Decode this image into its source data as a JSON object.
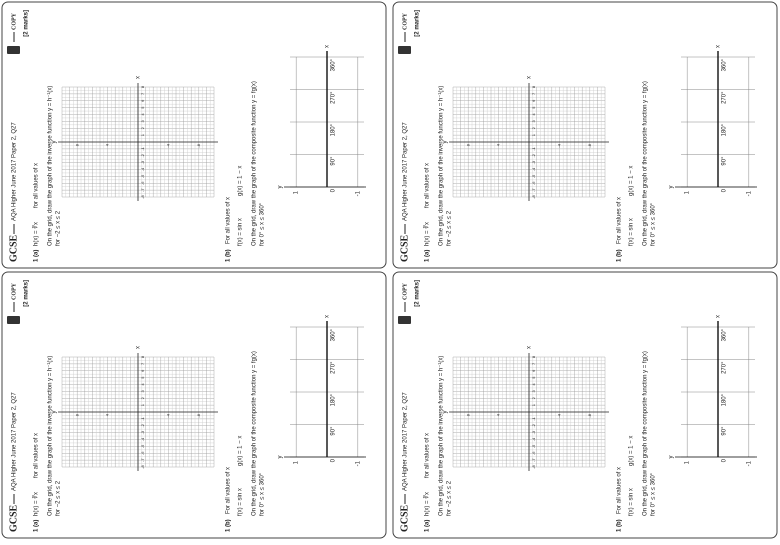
{
  "header": {
    "brand": "GCSE",
    "source": "AQA Higher June 2017 Paper 2, Q27",
    "copy": "COPY",
    "marks": "[2 marks]"
  },
  "part_a": {
    "label": "1 (a)",
    "function": "h(x) = ∛x",
    "domain_note": "for all values of x",
    "instruction": "On the grid, draw the graph of the inverse function y = h⁻¹(x)",
    "range": "for −2 ≤ x ≤ 2",
    "x_label": "x",
    "y_label": "y",
    "xlim": [
      -8,
      8
    ],
    "ylim": [
      -10,
      10
    ],
    "xticks": [
      -8,
      -7,
      -6,
      -5,
      -4,
      -3,
      -2,
      -1,
      1,
      2,
      3,
      4,
      5,
      6,
      7,
      8
    ],
    "yticks": [
      -8,
      -4,
      4,
      8
    ]
  },
  "part_b": {
    "label": "1 (b)",
    "intro": "For all values of x",
    "f": "f(x) = sin x",
    "g": "g(x) = 1 − x",
    "instruction": "On the grid, draw the graph of the composite function y = fg(x)",
    "range": "for 0° ≤ x ≤ 360°",
    "x_label": "x",
    "y_label": "y",
    "xlim": [
      0,
      360
    ],
    "ylim": [
      -1.2,
      1.2
    ],
    "xticks": [
      {
        "value": 0,
        "label": "0"
      },
      {
        "value": 90,
        "label": "90°"
      },
      {
        "value": 180,
        "label": "180°"
      },
      {
        "value": 270,
        "label": "270°"
      },
      {
        "value": 360,
        "label": "360°"
      }
    ],
    "yticks": [
      1,
      -1
    ]
  }
}
